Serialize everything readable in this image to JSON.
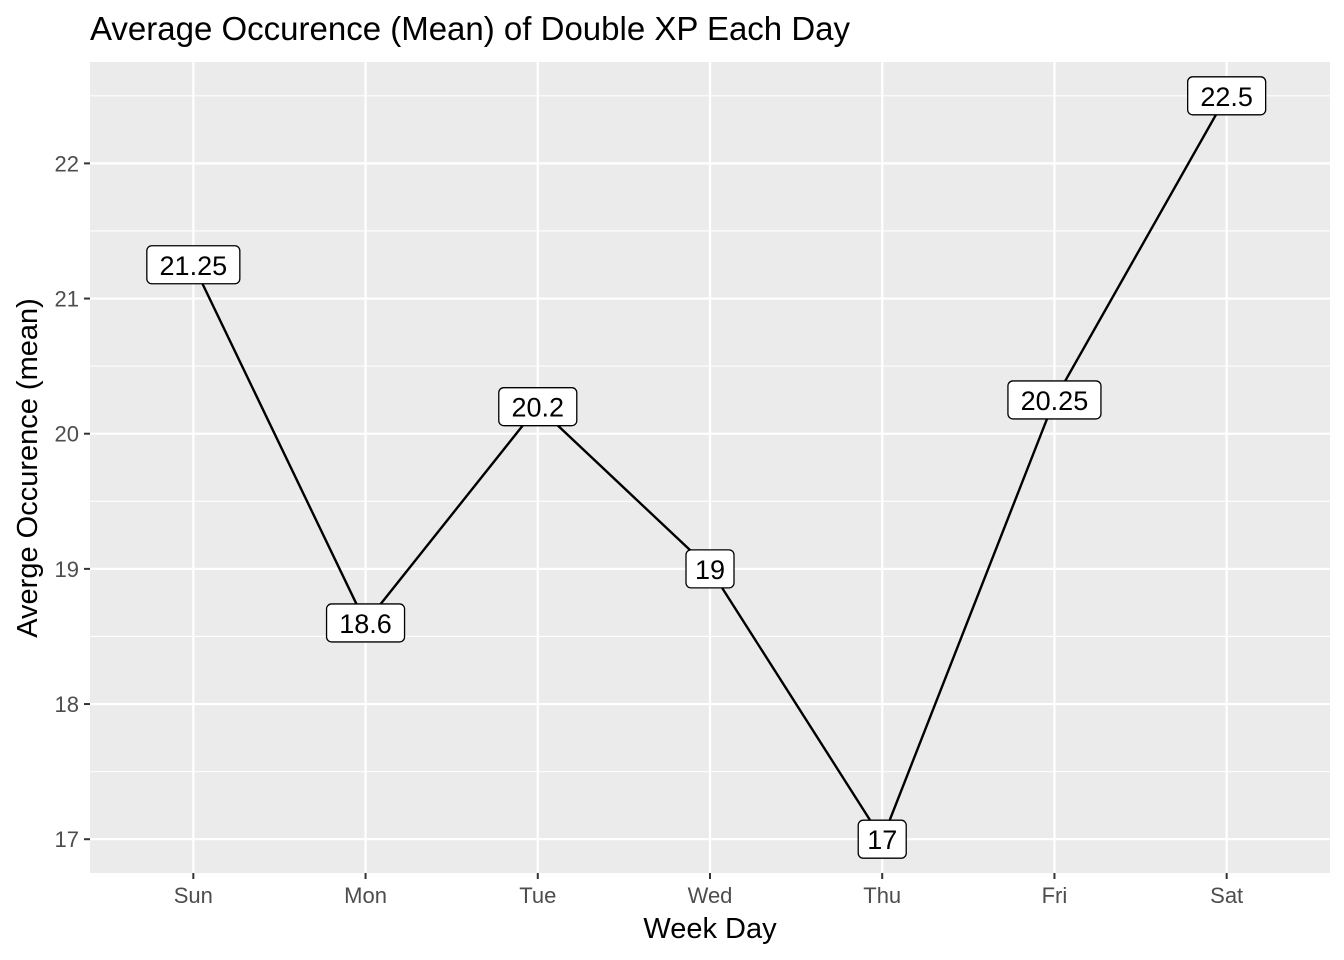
{
  "chart_data": {
    "type": "line",
    "title": "Average Occurence (Mean) of Double XP Each Day",
    "xlabel": "Week Day",
    "ylabel": "Averge Occurence (mean)",
    "categories": [
      "Sun",
      "Mon",
      "Tue",
      "Wed",
      "Thu",
      "Fri",
      "Sat"
    ],
    "series": [
      {
        "values": [
          21.25,
          18.6,
          20.2,
          19,
          17,
          20.25,
          22.5
        ],
        "labels": [
          "21.25",
          "18.6",
          "20.2",
          "19",
          "17",
          "20.25",
          "22.5"
        ]
      }
    ],
    "y_ticks": [
      17,
      18,
      19,
      20,
      21,
      22
    ],
    "ylim": [
      16.75,
      22.75
    ],
    "grid": true,
    "legend": "none",
    "colors": {
      "panel": "#ebebeb",
      "grid": "#ffffff",
      "line": "#000000",
      "tick_text": "#4d4d4d",
      "tick_mark": "#333333"
    }
  }
}
